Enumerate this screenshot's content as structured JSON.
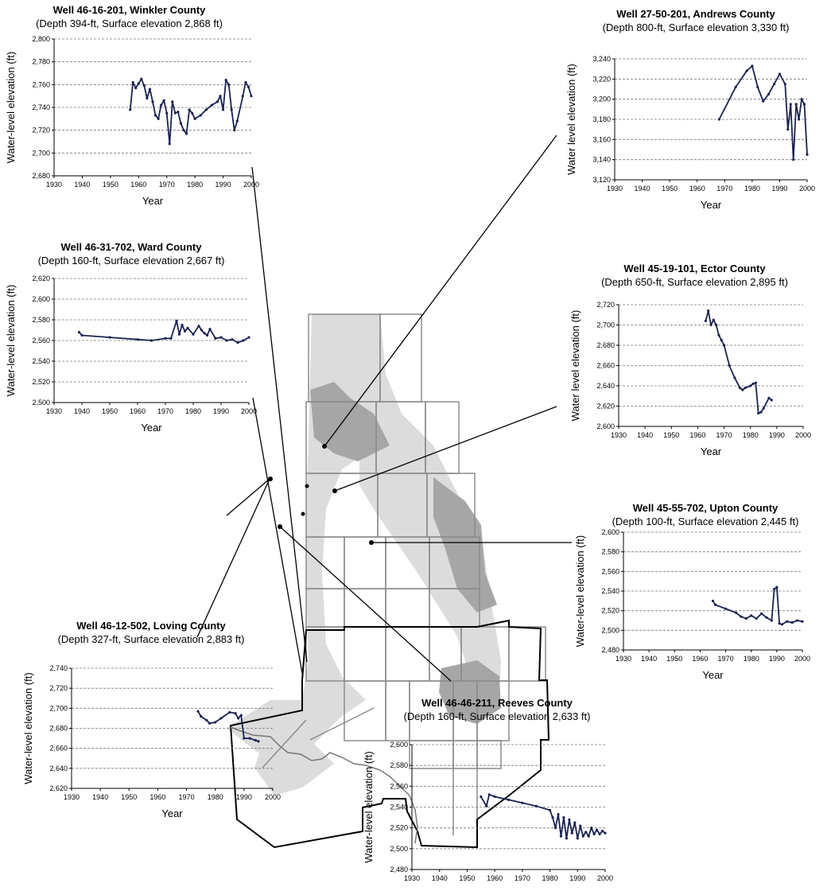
{
  "colors": {
    "series": "#1a2350",
    "aquifer_light": "#dcdcdc",
    "aquifer_dark": "#a6a6a6",
    "county_grid": "#8c8c8c",
    "district_outline": "#000000",
    "gridline": "#777777"
  },
  "chart_data": [
    {
      "id": "winkler",
      "type": "line",
      "title": "Well 46-16-201, Winkler County",
      "subtitle": "(Depth 394-ft, Surface elevation 2,868 ft)",
      "xlabel": "Year",
      "ylabel": "Water-level elevation (ft)",
      "xlim": [
        1930,
        2000
      ],
      "ylim": [
        2680,
        2800
      ],
      "xticks": [
        "1930",
        "1940",
        "1950",
        "1960",
        "1970",
        "1980",
        "1990",
        "2000"
      ],
      "yticks": [
        "2,680",
        "2,700",
        "2,720",
        "2,740",
        "2,760",
        "2,780",
        "2,800"
      ],
      "grid": true,
      "series": [
        {
          "x": [
            1957,
            1958,
            1959,
            1960,
            1961,
            1962,
            1963,
            1964,
            1965,
            1966,
            1967,
            1968,
            1969,
            1970,
            1971,
            1972,
            1973,
            1974,
            1975,
            1976,
            1977,
            1978,
            1979,
            1980,
            1982,
            1984,
            1986,
            1988,
            1989,
            1990,
            1991,
            1992,
            1993,
            1994,
            1995,
            1997,
            1998,
            1999,
            2000
          ],
          "y": [
            2738,
            2762,
            2757,
            2761,
            2765,
            2759,
            2748,
            2756,
            2745,
            2733,
            2730,
            2742,
            2746,
            2735,
            2708,
            2745,
            2735,
            2736,
            2726,
            2720,
            2717,
            2738,
            2735,
            2730,
            2733,
            2738,
            2742,
            2745,
            2750,
            2738,
            2764,
            2760,
            2738,
            2720,
            2728,
            2750,
            2762,
            2758,
            2750
          ]
        }
      ]
    },
    {
      "id": "andrews",
      "type": "line",
      "title": "Well 27-50-201, Andrews County",
      "subtitle": "(Depth 800-ft, Surface elevation 3,330 ft)",
      "xlabel": "Year",
      "ylabel": "Water level elevation (ft)",
      "xlim": [
        1930,
        2000
      ],
      "ylim": [
        3120,
        3240
      ],
      "xticks": [
        "1930",
        "1940",
        "1950",
        "1960",
        "1970",
        "1980",
        "1990",
        "2000"
      ],
      "yticks": [
        "3,120",
        "3,140",
        "3,160",
        "3,180",
        "3,200",
        "3,220",
        "3,240"
      ],
      "grid": true,
      "series": [
        {
          "x": [
            1968,
            1974,
            1978,
            1980,
            1982,
            1984,
            1986,
            1988,
            1990,
            1992,
            1993,
            1994,
            1995,
            1996,
            1997,
            1998,
            1999,
            2000
          ],
          "y": [
            3180,
            3212,
            3228,
            3233,
            3212,
            3198,
            3205,
            3215,
            3225,
            3215,
            3170,
            3195,
            3140,
            3195,
            3180,
            3200,
            3195,
            3145
          ]
        }
      ]
    },
    {
      "id": "ward",
      "type": "line",
      "title": "Well 46-31-702, Ward County",
      "subtitle": "(Depth 160-ft, Surface elevation 2,667 ft)",
      "xlabel": "Year",
      "ylabel": "Water-level elevation (ft)",
      "xlim": [
        1930,
        2000
      ],
      "ylim": [
        2500,
        2620
      ],
      "xticks": [
        "1930",
        "1940",
        "1950",
        "1960",
        "1970",
        "1980",
        "1990",
        "2000"
      ],
      "yticks": [
        "2,500",
        "2,520",
        "2,540",
        "2,560",
        "2,580",
        "2,600",
        "2,620"
      ],
      "grid": true,
      "series": [
        {
          "x": [
            1939,
            1940,
            1950,
            1960,
            1965,
            1970,
            1972,
            1974,
            1975,
            1976,
            1977,
            1978,
            1980,
            1982,
            1983,
            1984,
            1985,
            1986,
            1988,
            1990,
            1992,
            1994,
            1996,
            1998,
            2000
          ],
          "y": [
            2568,
            2565,
            2563,
            2561,
            2560,
            2562,
            2562,
            2579,
            2566,
            2575,
            2569,
            2572,
            2566,
            2574,
            2570,
            2567,
            2565,
            2571,
            2562,
            2563,
            2560,
            2561,
            2558,
            2560,
            2563
          ]
        }
      ]
    },
    {
      "id": "ector",
      "type": "line",
      "title": "Well 45-19-101, Ector County",
      "subtitle": "(Depth 650-ft, Surface elevation 2,895 ft)",
      "xlabel": "Year",
      "ylabel": "Water level elevation (ft)",
      "xlim": [
        1930,
        2000
      ],
      "ylim": [
        2600,
        2720
      ],
      "xticks": [
        "1930",
        "1940",
        "1950",
        "1960",
        "1970",
        "1980",
        "1990",
        "2000"
      ],
      "yticks": [
        "2,600",
        "2,620",
        "2,640",
        "2,660",
        "2,680",
        "2,700",
        "2,720"
      ],
      "grid": true,
      "series": [
        {
          "x": [
            1963,
            1964,
            1965,
            1966,
            1967,
            1968,
            1969,
            1970,
            1972,
            1974,
            1976,
            1977,
            1978,
            1980,
            1981,
            1982,
            1983,
            1984,
            1985,
            1987,
            1988
          ],
          "y": [
            2704,
            2714,
            2700,
            2705,
            2700,
            2690,
            2685,
            2680,
            2660,
            2648,
            2638,
            2636,
            2638,
            2640,
            2642,
            2643,
            2613,
            2614,
            2618,
            2628,
            2626
          ]
        }
      ]
    },
    {
      "id": "upton",
      "type": "line",
      "title": "Well 45-55-702, Upton County",
      "subtitle": "(Depth 100-ft, Surface elevation 2,445 ft)",
      "xlabel": "Year",
      "ylabel": "Water-level elevation (ft)",
      "xlim": [
        1930,
        2000
      ],
      "ylim": [
        2480,
        2600
      ],
      "xticks": [
        "1930",
        "1940",
        "1950",
        "1960",
        "1970",
        "1980",
        "1990",
        "2000"
      ],
      "yticks": [
        "2,480",
        "2,500",
        "2,520",
        "2,540",
        "2,560",
        "2,580",
        "2,600"
      ],
      "grid": true,
      "series": [
        {
          "x": [
            1965,
            1966,
            1970,
            1974,
            1976,
            1978,
            1980,
            1982,
            1984,
            1986,
            1988,
            1989,
            1990,
            1991,
            1992,
            1994,
            1996,
            1998,
            2000
          ],
          "y": [
            2530,
            2526,
            2522,
            2518,
            2514,
            2512,
            2515,
            2512,
            2517,
            2513,
            2510,
            2542,
            2544,
            2507,
            2506,
            2509,
            2508,
            2510,
            2509
          ]
        }
      ]
    },
    {
      "id": "loving",
      "type": "line",
      "title": "Well 46-12-502, Loving County",
      "subtitle": "(Depth 327-ft, Surface elevation 2,883 ft)",
      "xlabel": "Year",
      "ylabel": "Water-level elevation (ft)",
      "xlim": [
        1930,
        2000
      ],
      "ylim": [
        2620,
        2740
      ],
      "xticks": [
        "1930",
        "1940",
        "1950",
        "1960",
        "1970",
        "1980",
        "1990",
        "2000"
      ],
      "yticks": [
        "2,620",
        "2,640",
        "2,660",
        "2,680",
        "2,700",
        "2,720",
        "2,740"
      ],
      "grid": true,
      "series": [
        {
          "x": [
            1974,
            1975,
            1977,
            1978,
            1980,
            1982,
            1985,
            1987,
            1988,
            1989,
            1990,
            1992,
            1994,
            1995
          ],
          "y": [
            2697,
            2692,
            2688,
            2685,
            2686,
            2690,
            2696,
            2695,
            2690,
            2693,
            2670,
            2670,
            2668,
            2667
          ]
        }
      ]
    },
    {
      "id": "reeves",
      "type": "line",
      "title": "Well 46-46-211, Reeves County",
      "subtitle": "(Depth 160-ft, Surface elevation 2,633 ft)",
      "xlabel": "Year",
      "ylabel": "Water-level elevation (ft)",
      "xlim": [
        1930,
        2000
      ],
      "ylim": [
        2480,
        2600
      ],
      "xticks": [
        "1930",
        "1940",
        "1950",
        "1960",
        "1970",
        "1980",
        "1990",
        "2000"
      ],
      "yticks": [
        "2,480",
        "2,500",
        "2,520",
        "2,540",
        "2,560",
        "2,580",
        "2,600"
      ],
      "grid": true,
      "series": [
        {
          "x": [
            1955,
            1957,
            1958,
            1960,
            1965,
            1970,
            1975,
            1980,
            1981,
            1982,
            1983,
            1984,
            1985,
            1986,
            1987,
            1988,
            1989,
            1990,
            1991,
            1992,
            1993,
            1994,
            1995,
            1996,
            1997,
            1998,
            1999,
            2000
          ],
          "y": [
            2550,
            2541,
            2552,
            2550,
            2547,
            2544,
            2541,
            2537,
            2530,
            2520,
            2533,
            2512,
            2530,
            2510,
            2528,
            2515,
            2525,
            2510,
            2522,
            2512,
            2516,
            2512,
            2520,
            2514,
            2518,
            2514,
            2517,
            2515
          ]
        }
      ]
    }
  ]
}
